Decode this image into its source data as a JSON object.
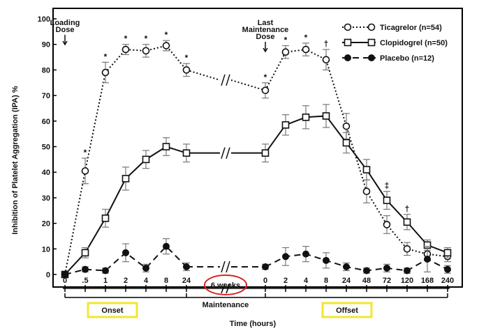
{
  "chart_data": {
    "type": "line",
    "ylabel": "Inhibition of Platelet Aggregation (IPA) %",
    "xlabel": "Time (hours)",
    "ylim": [
      0,
      100
    ],
    "yticks": [
      0,
      10,
      20,
      30,
      40,
      50,
      60,
      70,
      80,
      90,
      100
    ],
    "x": [
      "0",
      ".5",
      "1",
      "2",
      "4",
      "8",
      "24",
      "0",
      "2",
      "4",
      "8",
      "24",
      "48",
      "72",
      "120",
      "168",
      "240"
    ],
    "break_label": "6 weeks",
    "phases": [
      {
        "label": "Onset",
        "boxed": true
      },
      {
        "label": "Maintenance",
        "boxed": false
      },
      {
        "label": "Offset",
        "boxed": true
      }
    ],
    "annotations": [
      {
        "text": "Loading Dose",
        "lines": [
          "Loading",
          "Dose"
        ],
        "at_index": 0
      },
      {
        "text": "Last Maintenance Dose",
        "lines": [
          "Last",
          "Maintenance",
          "Dose"
        ],
        "at_index": 7
      }
    ],
    "series": [
      {
        "name": "Ticagrelor (n=54)",
        "style": "dotted",
        "marker": "open-circle",
        "values": [
          0,
          40.5,
          79,
          88,
          87.5,
          89.5,
          80,
          72,
          87,
          88,
          84,
          58,
          32.5,
          19.5,
          10,
          8,
          7
        ],
        "errors": [
          0,
          5,
          4,
          2,
          2.5,
          2,
          2.5,
          3,
          2.5,
          2.5,
          4,
          5,
          4.5,
          3.5,
          2.5,
          2.5,
          2
        ],
        "sig": [
          "",
          "*",
          "*",
          "*",
          "*",
          "*",
          "*",
          "*",
          "*",
          "*",
          "†",
          "",
          "",
          "",
          "",
          "",
          ""
        ]
      },
      {
        "name": "Clopidogrel (n=50)",
        "style": "solid",
        "marker": "open-square",
        "values": [
          0,
          8.5,
          22,
          37.5,
          45,
          50,
          47.5,
          47.5,
          58.5,
          61.5,
          62,
          51.5,
          41,
          29,
          20.5,
          11.5,
          8.5
        ],
        "errors": [
          0,
          2,
          3.5,
          4.5,
          3.5,
          3.5,
          3.5,
          3.5,
          4,
          4.5,
          4.5,
          4,
          4,
          3.5,
          3,
          2,
          2
        ],
        "sig": [
          "",
          "",
          "",
          "",
          "",
          "",
          "",
          "",
          "",
          "",
          "",
          "",
          "",
          "‡",
          "†",
          "",
          ""
        ]
      },
      {
        "name": "Placebo (n=12)",
        "style": "dashed",
        "marker": "filled-circle",
        "values": [
          0,
          2,
          1.5,
          8.5,
          2.5,
          11,
          3,
          3,
          7,
          8,
          5.5,
          3,
          1.5,
          2.5,
          1.5,
          6,
          2
        ],
        "errors": [
          0,
          1,
          1,
          3.5,
          1.5,
          3,
          1.5,
          1,
          3.5,
          3,
          3,
          1.5,
          1,
          1.5,
          1,
          5,
          1.5
        ],
        "sig": [
          "",
          "",
          "",
          "",
          "",
          "",
          "",
          "",
          "",
          "",
          "",
          "",
          "",
          "",
          "",
          "",
          ""
        ]
      }
    ],
    "legend_position": "top-right",
    "grid": false
  }
}
